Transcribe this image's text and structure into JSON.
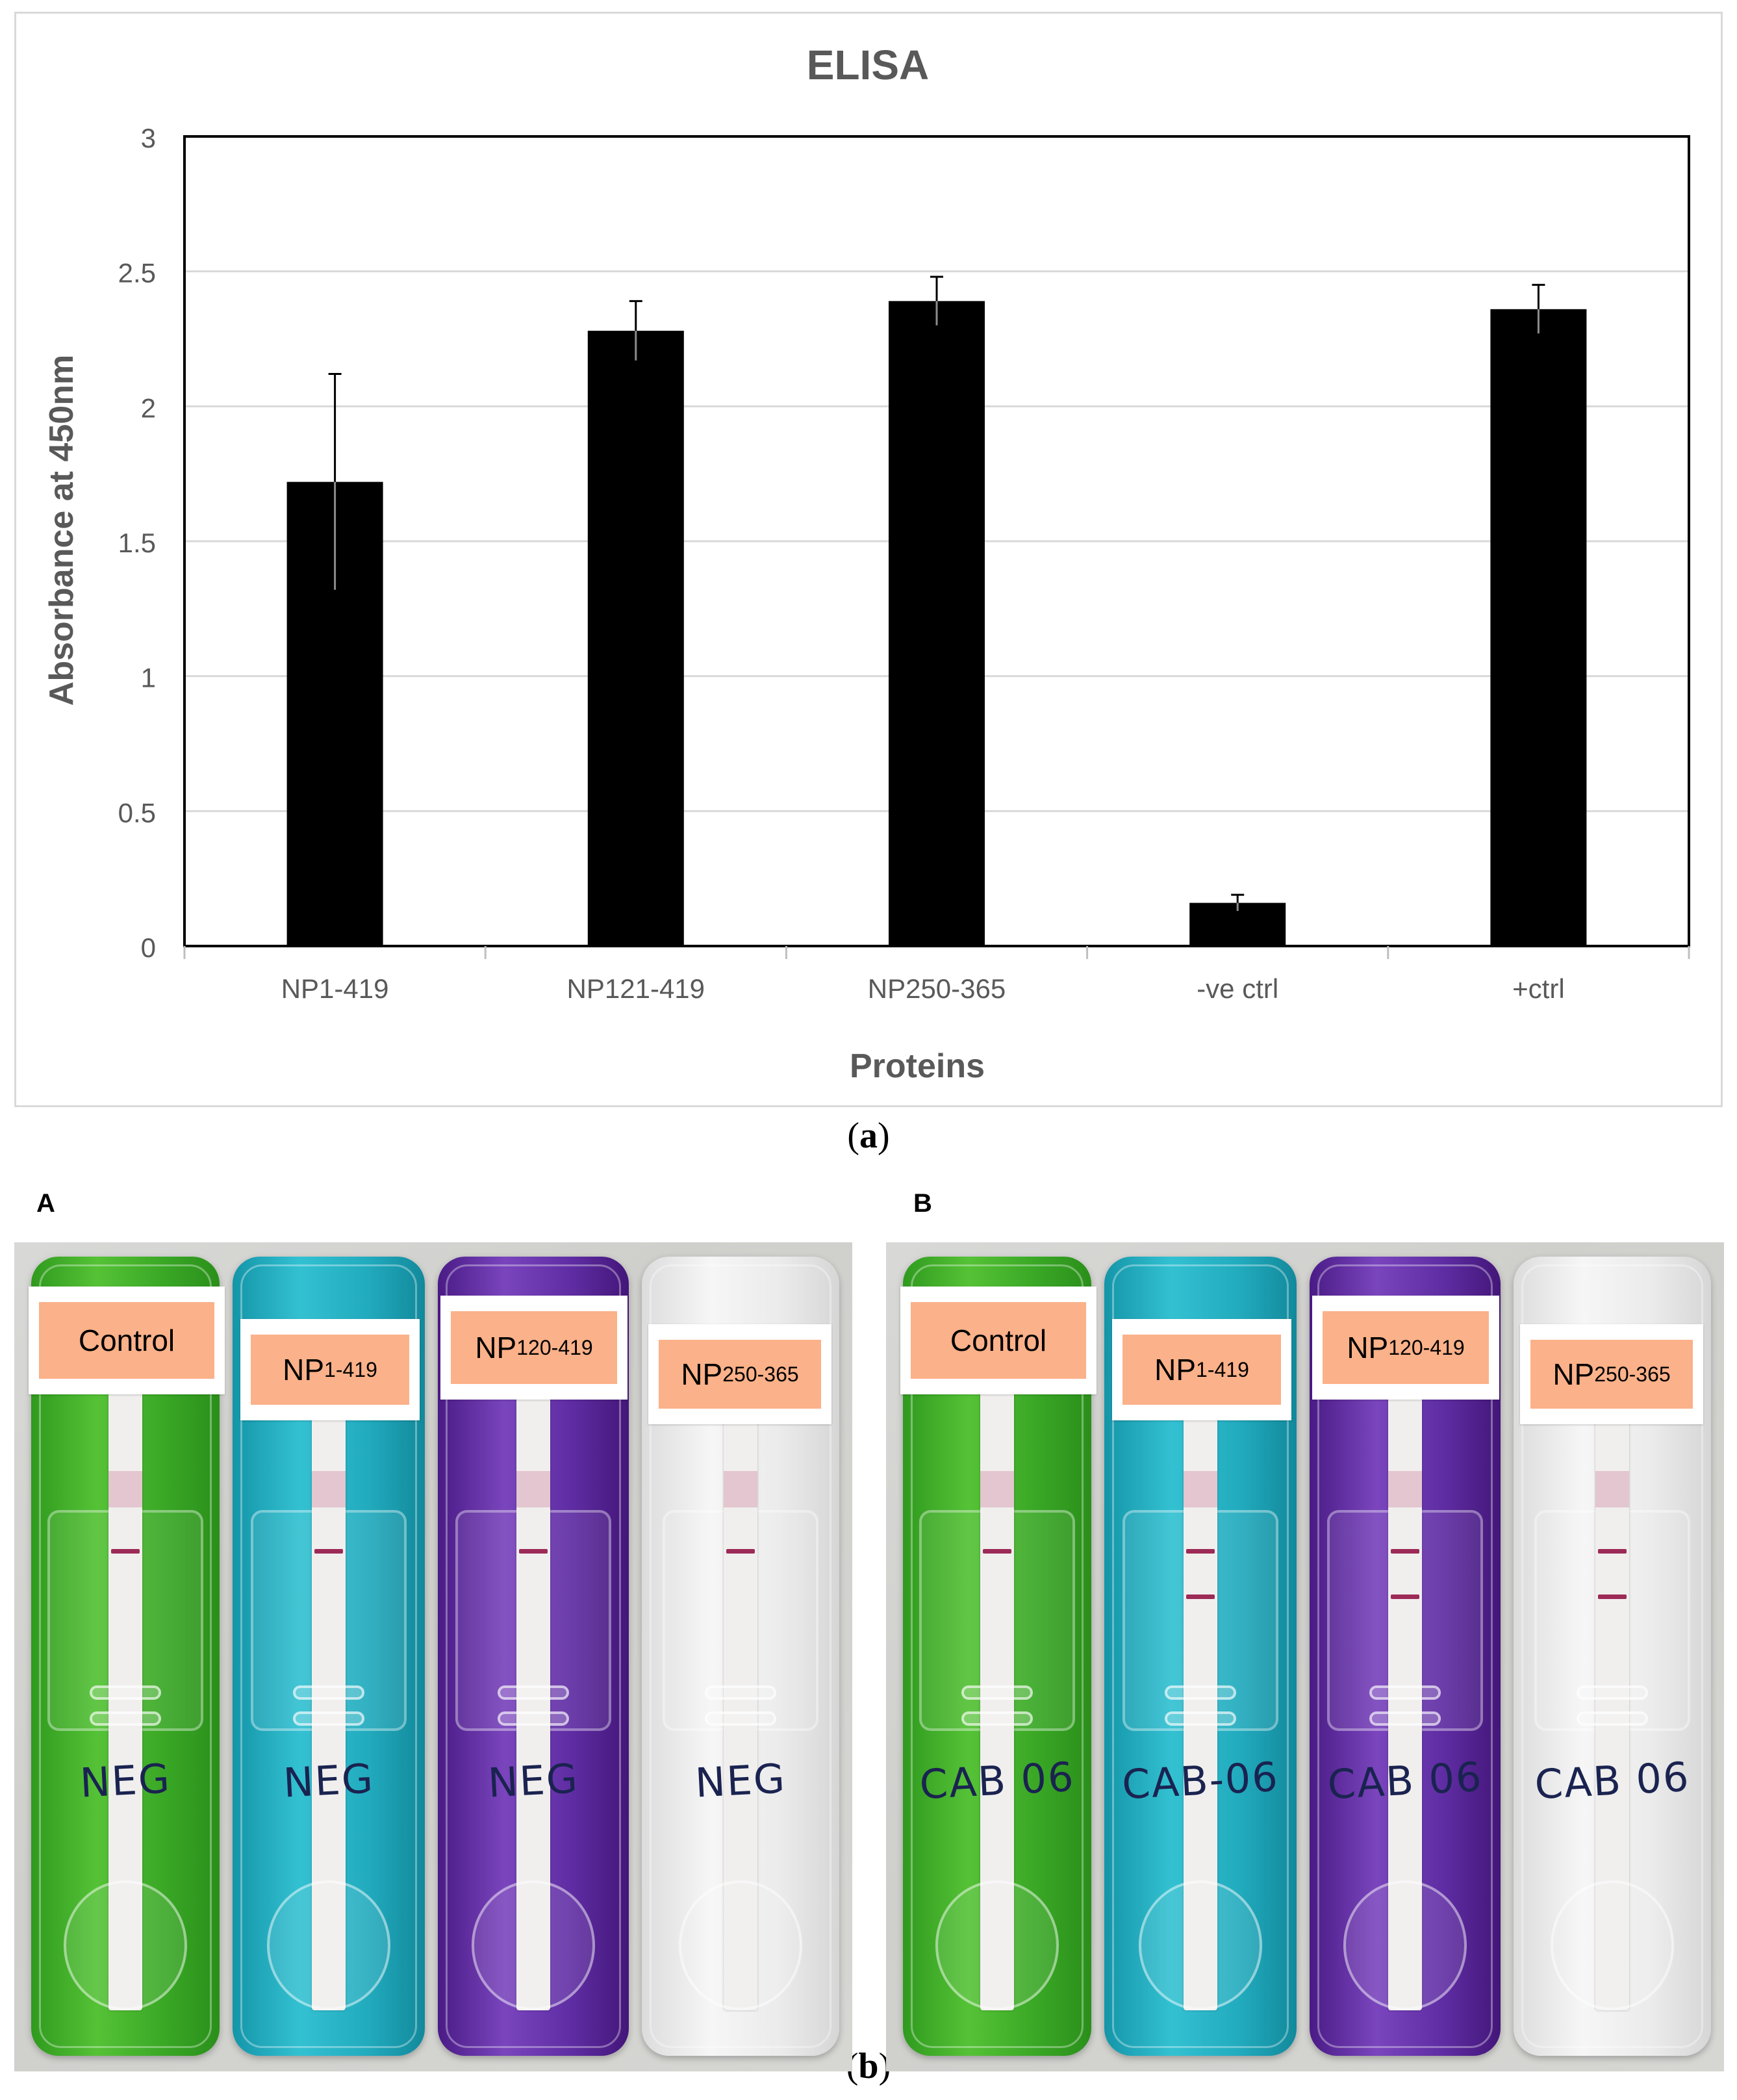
{
  "chart_data": {
    "type": "bar",
    "title": "ELISA",
    "xlabel": "Proteins",
    "ylabel": "Absorbance at 450nm",
    "categories": [
      "NP1-419",
      "NP121-419",
      "NP250-365",
      "-ve ctrl",
      "+ctrl"
    ],
    "values": [
      1.72,
      2.28,
      2.39,
      0.16,
      2.36
    ],
    "error": [
      0.4,
      0.11,
      0.09,
      0.03,
      0.09
    ],
    "ylim": [
      0,
      3
    ],
    "yticks": [
      "0",
      "0.5",
      "1",
      "1.5",
      "2",
      "2.5",
      "3"
    ],
    "grid": true,
    "bar_color": "#000000",
    "gridline_color": "#d9d9d9"
  },
  "captions": {
    "a": "a",
    "b": "b"
  },
  "photos": [
    {
      "letter": "A",
      "cassettes": [
        {
          "label_main": "Control",
          "label_sub": "",
          "handwriting": "NEG",
          "lines": [
            "control"
          ]
        },
        {
          "label_main": "NP",
          "label_sub": "1-419",
          "handwriting": "NEG",
          "lines": [
            "control"
          ]
        },
        {
          "label_main": "NP",
          "label_sub": "120-419",
          "handwriting": "NEG",
          "lines": [
            "control"
          ]
        },
        {
          "label_main": "NP",
          "label_sub": "250-365",
          "handwriting": "NEG",
          "lines": [
            "control"
          ]
        }
      ]
    },
    {
      "letter": "B",
      "cassettes": [
        {
          "label_main": "Control",
          "label_sub": "",
          "handwriting": "CAB 06",
          "lines": [
            "control"
          ]
        },
        {
          "label_main": "NP",
          "label_sub": "1-419",
          "handwriting": "CAB-06",
          "lines": [
            "control",
            "test"
          ]
        },
        {
          "label_main": "NP",
          "label_sub": "120-419",
          "handwriting": "CAB 06",
          "lines": [
            "control",
            "test"
          ]
        },
        {
          "label_main": "NP",
          "label_sub": "250-365",
          "handwriting": "CAB 06",
          "lines": [
            "control",
            "test"
          ]
        }
      ]
    }
  ]
}
